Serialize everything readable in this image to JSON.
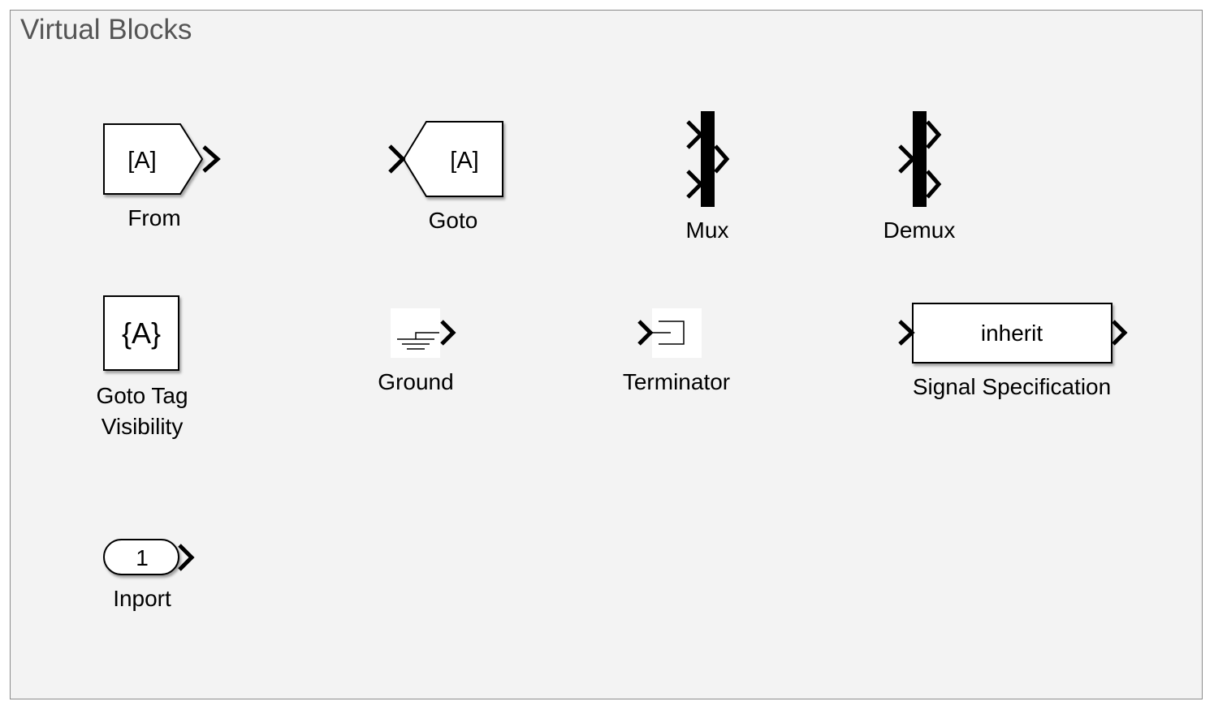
{
  "library": {
    "title": "Virtual Blocks"
  },
  "blocks": {
    "from": {
      "icon_text": "[A]",
      "label": "From"
    },
    "goto": {
      "icon_text": "[A]",
      "label": "Goto"
    },
    "mux": {
      "label": "Mux"
    },
    "demux": {
      "label": "Demux"
    },
    "goto_tag_visibility": {
      "icon_text": "{A}",
      "label_line1": "Goto Tag",
      "label_line2": "Visibility"
    },
    "ground": {
      "label": "Ground"
    },
    "terminator": {
      "label": "Terminator"
    },
    "signal_specification": {
      "icon_text": "inherit",
      "label": "Signal Specification"
    },
    "inport": {
      "icon_text": "1",
      "label": "Inport"
    }
  },
  "icons": {
    "port_arrow": "chevron-right-icon",
    "ground_symbol": "ground-icon",
    "terminator_symbol": "terminator-icon"
  },
  "colors": {
    "panel_background": "#f3f3f3",
    "panel_border": "#8a8a8a",
    "title_text": "#555555",
    "block_fill": "#ffffff",
    "block_stroke": "#000000"
  }
}
